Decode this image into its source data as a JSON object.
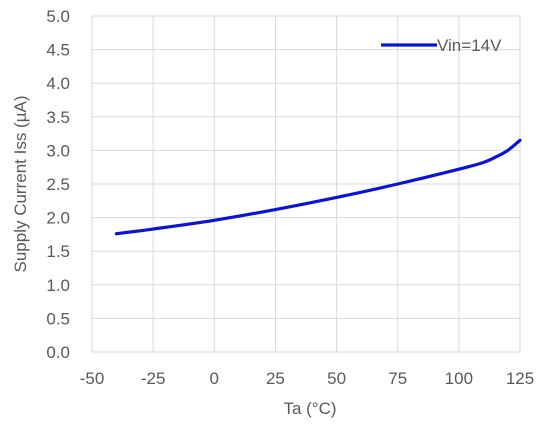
{
  "chart_data": {
    "type": "line",
    "title": "",
    "xlabel": "Ta (°C)",
    "ylabel": "Supply Current Iss (µA)",
    "xlim": [
      -50,
      125
    ],
    "ylim": [
      0.0,
      5.0
    ],
    "x_ticks": [
      "-50",
      "-25",
      "0",
      "25",
      "50",
      "75",
      "100",
      "125"
    ],
    "x_tick_values": [
      -50,
      -25,
      0,
      25,
      50,
      75,
      100,
      125
    ],
    "y_ticks": [
      "0.0",
      "0.5",
      "1.0",
      "1.5",
      "2.0",
      "2.5",
      "3.0",
      "3.5",
      "4.0",
      "4.5",
      "5.0"
    ],
    "y_tick_values": [
      0.0,
      0.5,
      1.0,
      1.5,
      2.0,
      2.5,
      3.0,
      3.5,
      4.0,
      4.5,
      5.0
    ],
    "grid": true,
    "legend_position": "top-right",
    "series": [
      {
        "name": "Vin=14V",
        "color": "#0a14d6",
        "x": [
          -40,
          -25,
          0,
          25,
          50,
          75,
          100,
          110,
          115,
          120,
          125
        ],
        "values": [
          1.76,
          1.83,
          1.96,
          2.12,
          2.3,
          2.5,
          2.72,
          2.82,
          2.9,
          3.0,
          3.15
        ]
      }
    ]
  }
}
